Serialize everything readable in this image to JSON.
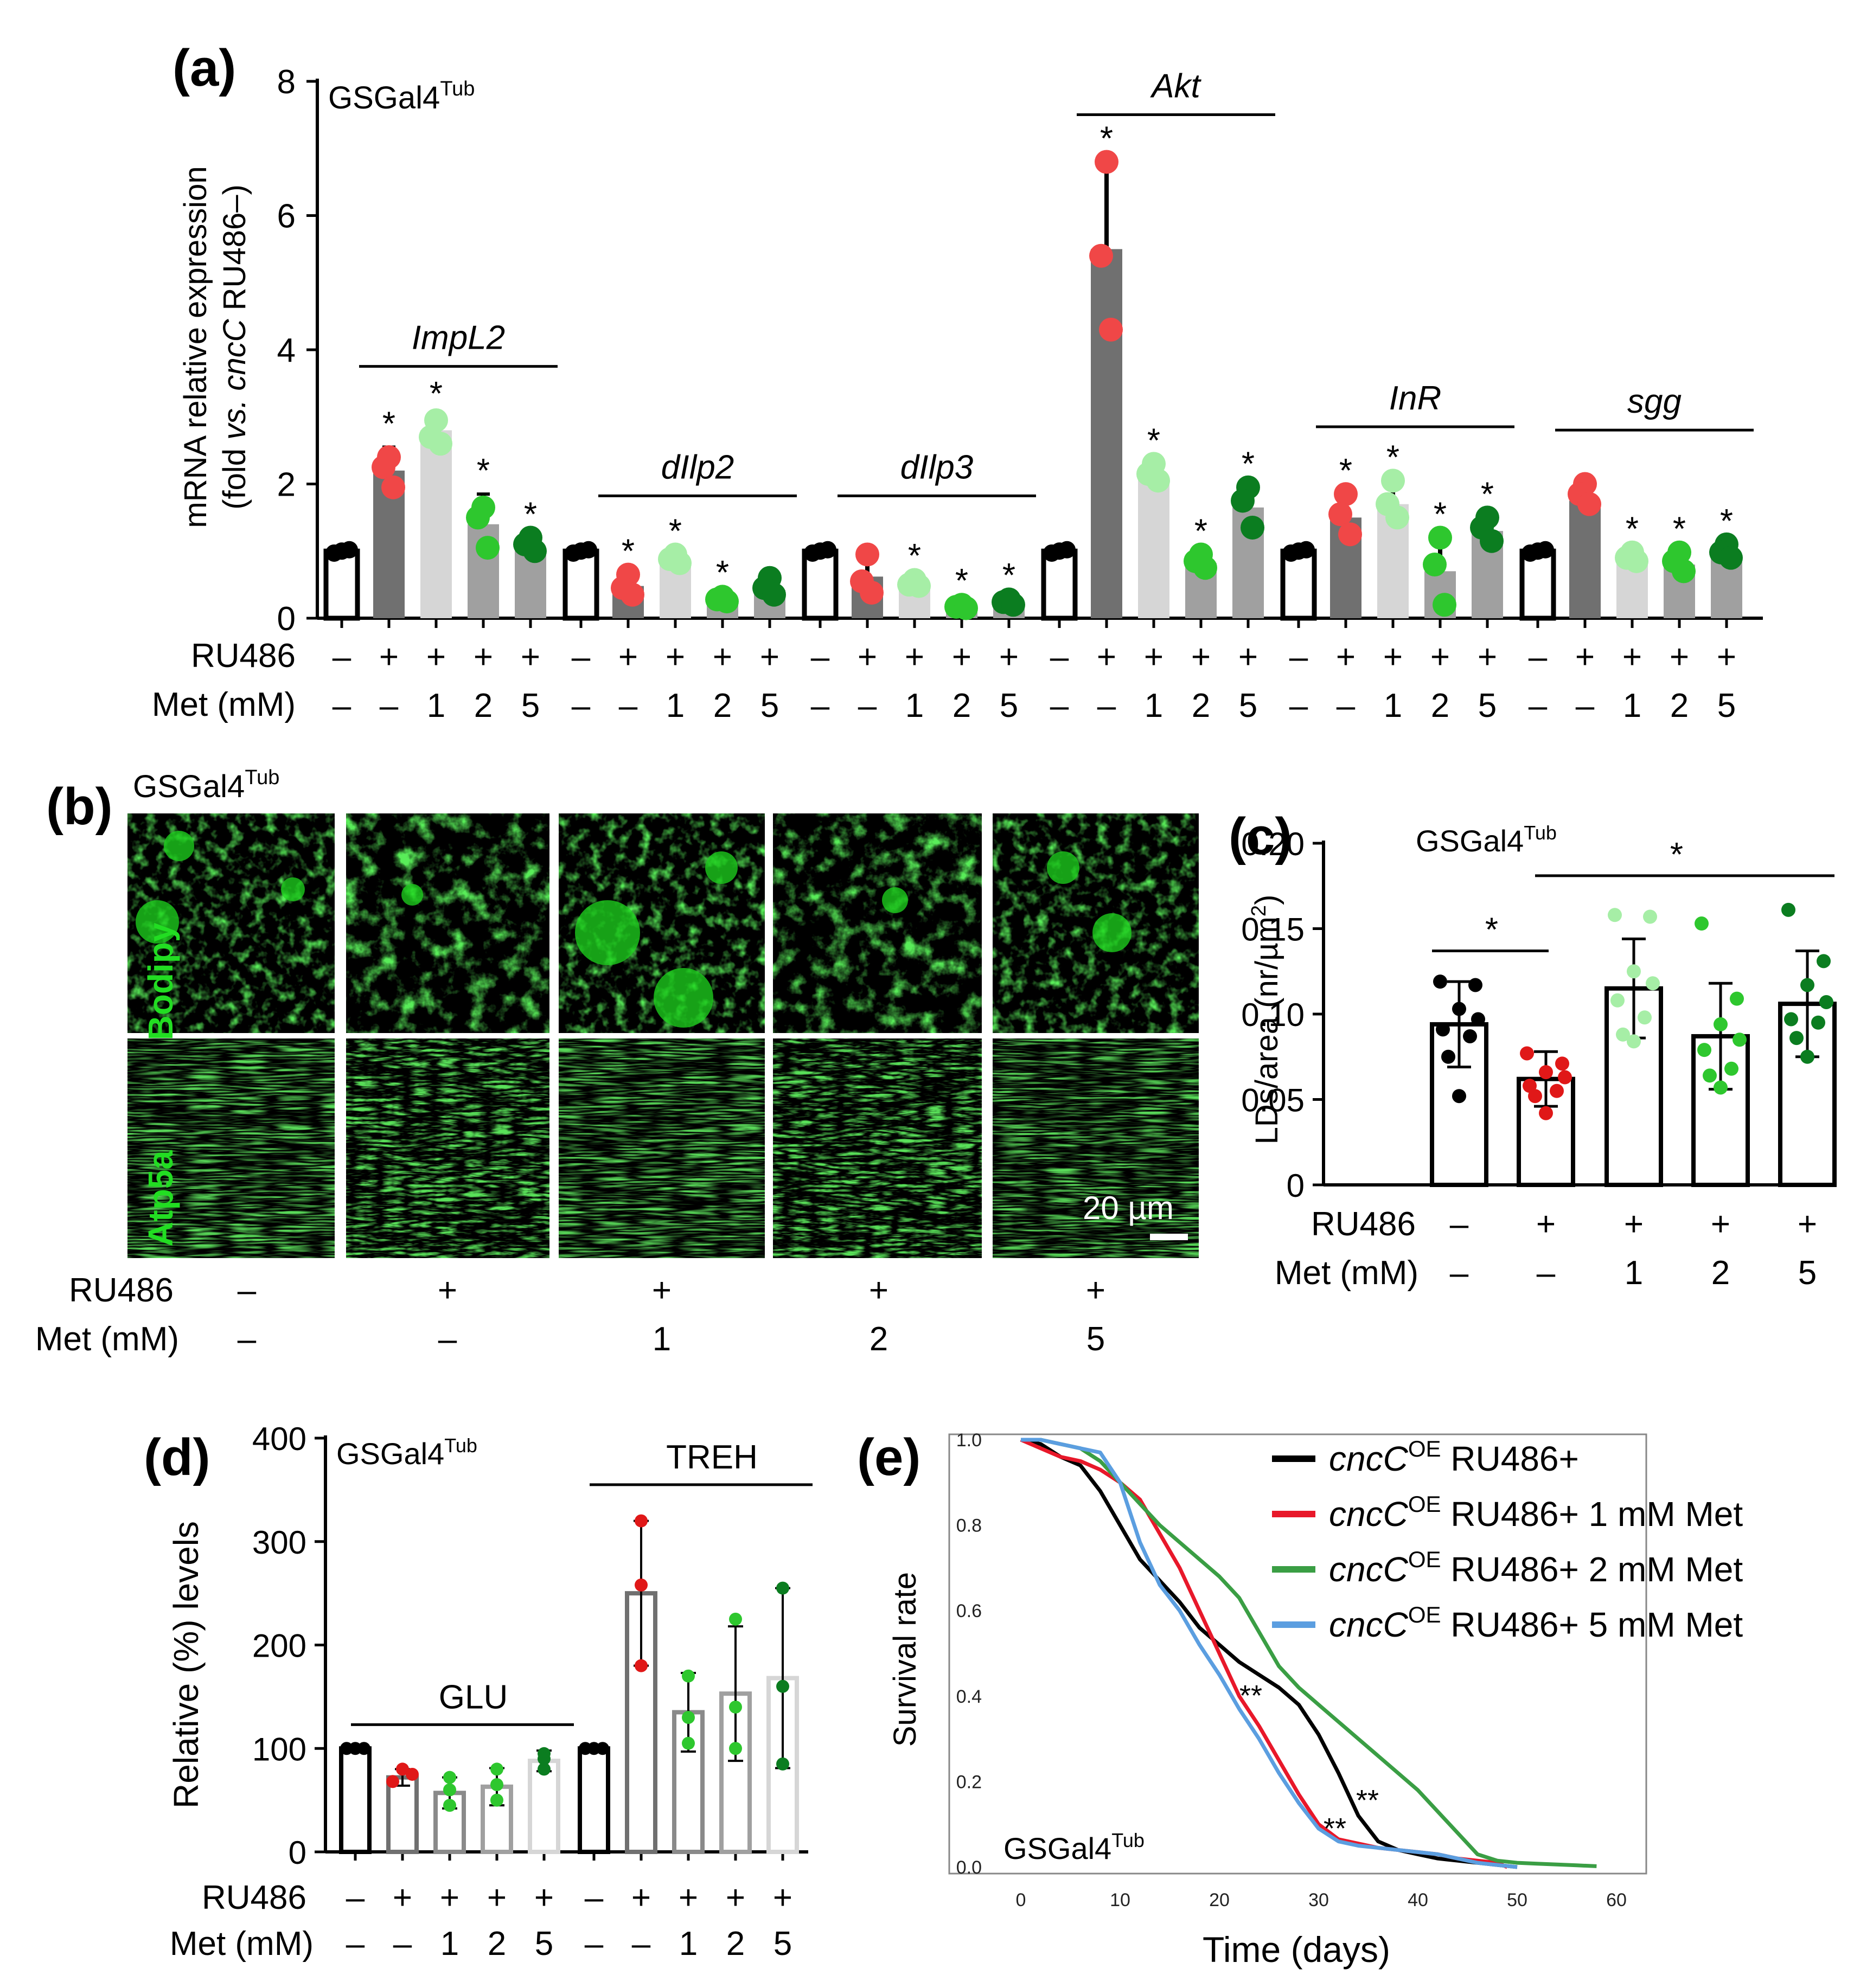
{
  "colors": {
    "black": "#000000",
    "red": "#e8403f",
    "red_dot": "#f04747",
    "lightgreen": "#a6eea6",
    "green": "#2ec72e",
    "darkgreen": "#0b7d20",
    "bar_dark": "#707070",
    "bar_mid": "#a0a0a0",
    "bar_light": "#d6d6d6",
    "line_black": "#000000",
    "line_red": "#e8182a",
    "line_green": "#3a9e44",
    "line_blue": "#5b9ee0",
    "img_green": "#1fd71f"
  },
  "panel_a": {
    "letter": "(a)",
    "strain": "GSGal4",
    "strain_sup": "Tub",
    "ylabel_line1": "mRNA relative expression",
    "ylabel_line2_pre": "(fold ",
    "ylabel_line2_vs": "vs.",
    "ylabel_line2_gene": "cncC",
    "ylabel_line2_post": " RU486–)",
    "row_labels": [
      "RU486",
      "Met (mM)"
    ],
    "chart_data": {
      "type": "bar",
      "ylim": [
        0,
        8
      ],
      "yticks": [
        "0",
        "2",
        "4",
        "6",
        "8"
      ],
      "ytick_values": [
        0,
        2,
        4,
        6,
        8
      ],
      "conditions": [
        {
          "ru486": "–",
          "met": "–"
        },
        {
          "ru486": "+",
          "met": "–"
        },
        {
          "ru486": "+",
          "met": "1"
        },
        {
          "ru486": "+",
          "met": "2"
        },
        {
          "ru486": "+",
          "met": "5"
        }
      ],
      "groups": [
        {
          "gene": "ImpL2",
          "means": [
            1.0,
            2.2,
            2.8,
            1.4,
            1.05
          ],
          "err": [
            0.04,
            0.35,
            0.2,
            0.45,
            0.12
          ],
          "points": [
            [
              0.97,
              1.0,
              1.02
            ],
            [
              2.4,
              2.25,
              1.95
            ],
            [
              2.95,
              2.7,
              2.6
            ],
            [
              1.65,
              1.5,
              1.05
            ],
            [
              1.2,
              1.1,
              1.0
            ]
          ],
          "sig": [
            "",
            "*",
            "*",
            "*",
            "*"
          ]
        },
        {
          "gene": "dIlp2",
          "means": [
            1.0,
            0.48,
            0.88,
            0.28,
            0.42
          ],
          "err": [
            0.04,
            0.15,
            0.06,
            0.05,
            0.12
          ],
          "points": [
            [
              0.97,
              1.0,
              1.02
            ],
            [
              0.65,
              0.45,
              0.35
            ],
            [
              0.95,
              0.88,
              0.82
            ],
            [
              0.32,
              0.28,
              0.25
            ],
            [
              0.6,
              0.45,
              0.35
            ]
          ],
          "sig": [
            "",
            "*",
            "*",
            "*",
            ""
          ]
        },
        {
          "gene": "dIlp3",
          "means": [
            1.0,
            0.62,
            0.52,
            0.18,
            0.24
          ],
          "err": [
            0.04,
            0.3,
            0.06,
            0.03,
            0.05
          ],
          "points": [
            [
              0.97,
              1.0,
              1.02
            ],
            [
              0.95,
              0.55,
              0.38
            ],
            [
              0.57,
              0.5,
              0.48
            ],
            [
              0.2,
              0.17,
              0.15
            ],
            [
              0.28,
              0.24,
              0.2
            ]
          ],
          "sig": [
            "",
            "",
            "*",
            "*",
            "*"
          ]
        },
        {
          "gene": "Akt",
          "means": [
            1.0,
            5.5,
            2.1,
            0.82,
            1.65
          ],
          "err": [
            0.04,
            1.3,
            0.12,
            0.1,
            0.3
          ],
          "points": [
            [
              0.97,
              1.0,
              1.02
            ],
            [
              6.8,
              5.4,
              4.3
            ],
            [
              2.3,
              2.15,
              2.05
            ],
            [
              0.95,
              0.85,
              0.75
            ],
            [
              1.95,
              1.75,
              1.35
            ]
          ],
          "sig": [
            "",
            "*",
            "*",
            "*",
            "*"
          ]
        },
        {
          "gene": "InR",
          "means": [
            1.0,
            1.5,
            1.7,
            0.7,
            1.3
          ],
          "err": [
            0.04,
            0.3,
            0.3,
            0.45,
            0.2
          ],
          "points": [
            [
              0.97,
              1.0,
              1.02
            ],
            [
              1.85,
              1.55,
              1.25
            ],
            [
              2.05,
              1.7,
              1.5
            ],
            [
              1.2,
              0.8,
              0.2
            ],
            [
              1.5,
              1.35,
              1.15
            ]
          ],
          "sig": [
            "",
            "*",
            "*",
            "*",
            "*"
          ]
        },
        {
          "gene": "sgg",
          "means": [
            1.0,
            1.75,
            0.9,
            0.8,
            0.95
          ],
          "err": [
            0.04,
            0.2,
            0.06,
            0.15,
            0.1
          ],
          "points": [
            [
              0.97,
              1.0,
              1.02
            ],
            [
              2.0,
              1.85,
              1.7
            ],
            [
              0.98,
              0.9,
              0.85
            ],
            [
              0.98,
              0.85,
              0.7
            ],
            [
              1.1,
              0.98,
              0.9
            ]
          ],
          "sig": [
            "",
            "",
            "*",
            "*",
            "*"
          ]
        }
      ]
    }
  },
  "panel_b": {
    "letter": "(b)",
    "strain": "GSGal4",
    "strain_sup": "Tub",
    "row_names": [
      "Bodipy",
      "Atp5a"
    ],
    "scale_bar": "20 µm",
    "row_labels": [
      "RU486",
      "Met (mM)"
    ],
    "conditions": [
      {
        "ru486": "–",
        "met": "–"
      },
      {
        "ru486": "+",
        "met": "–"
      },
      {
        "ru486": "+",
        "met": "1"
      },
      {
        "ru486": "+",
        "met": "2"
      },
      {
        "ru486": "+",
        "met": "5"
      }
    ]
  },
  "panel_c": {
    "letter": "(c)",
    "strain": "GSGal4",
    "strain_sup": "Tub",
    "ylabel_pre": "LDs/area (nr/µm",
    "ylabel_sup": "2",
    "ylabel_post": ")",
    "row_labels": [
      "RU486",
      "Met (mM)"
    ],
    "chart_data": {
      "type": "bar",
      "ylim": [
        0,
        0.2
      ],
      "yticks": [
        "0",
        "0.05",
        "0.10",
        "0.15",
        "0.20"
      ],
      "ytick_values": [
        0,
        0.05,
        0.1,
        0.15,
        0.2
      ],
      "conditions": [
        {
          "ru486": "–",
          "met": "–"
        },
        {
          "ru486": "+",
          "met": "–"
        },
        {
          "ru486": "+",
          "met": "1"
        },
        {
          "ru486": "+",
          "met": "2"
        },
        {
          "ru486": "+",
          "met": "5"
        }
      ],
      "means": [
        0.094,
        0.062,
        0.115,
        0.087,
        0.106
      ],
      "err": [
        0.025,
        0.016,
        0.029,
        0.031,
        0.031
      ],
      "points": [
        [
          0.119,
          0.117,
          0.103,
          0.097,
          0.091,
          0.087,
          0.075,
          0.052
        ],
        [
          0.077,
          0.071,
          0.066,
          0.063,
          0.058,
          0.055,
          0.052,
          0.042
        ],
        [
          0.158,
          0.157,
          0.125,
          0.118,
          0.108,
          0.098,
          0.088,
          0.084
        ],
        [
          0.153,
          0.109,
          0.094,
          0.085,
          0.079,
          0.068,
          0.064,
          0.057
        ],
        [
          0.161,
          0.131,
          0.117,
          0.107,
          0.097,
          0.095,
          0.086,
          0.075
        ]
      ],
      "sig": [
        {
          "from": 0,
          "to": 1,
          "label": "*"
        },
        {
          "from": 1,
          "to": 4,
          "label": "*"
        }
      ]
    }
  },
  "panel_d": {
    "letter": "(d)",
    "strain": "GSGal4",
    "strain_sup": "Tub",
    "ylabel": "Relative (%) levels",
    "row_labels": [
      "RU486",
      "Met (mM)"
    ],
    "chart_data": {
      "type": "bar",
      "ylim": [
        0,
        400
      ],
      "yticks": [
        "0",
        "100",
        "200",
        "300",
        "400"
      ],
      "ytick_values": [
        0,
        100,
        200,
        300,
        400
      ],
      "conditions": [
        {
          "ru486": "–",
          "met": "–"
        },
        {
          "ru486": "+",
          "met": "–"
        },
        {
          "ru486": "+",
          "met": "1"
        },
        {
          "ru486": "+",
          "met": "2"
        },
        {
          "ru486": "+",
          "met": "5"
        }
      ],
      "groups": [
        {
          "name": "GLU",
          "means": [
            100,
            72,
            57,
            63,
            88
          ],
          "err": [
            1,
            8,
            15,
            18,
            10
          ],
          "points": [
            [
              100,
              100,
              100
            ],
            [
              80,
              75,
              68
            ],
            [
              72,
              60,
              45
            ],
            [
              80,
              65,
              50
            ],
            [
              95,
              90,
              80
            ]
          ]
        },
        {
          "name": "TREH",
          "means": [
            100,
            250,
            135,
            153,
            168
          ],
          "err": [
            1,
            70,
            38,
            65,
            87
          ],
          "points": [
            [
              100,
              100,
              100
            ],
            [
              320,
              258,
              180
            ],
            [
              170,
              130,
              105
            ],
            [
              225,
              140,
              100
            ],
            [
              255,
              160,
              85
            ]
          ]
        }
      ]
    }
  },
  "panel_e": {
    "letter": "(e)",
    "strain": "GSGal4",
    "strain_sup": "Tub",
    "xlabel": "Time (days)",
    "ylabel": "Survival rate",
    "chart_data": {
      "type": "line",
      "xlim": [
        -5,
        63
      ],
      "ylim": [
        -0.02,
        1.02
      ],
      "xticks": [
        "0",
        "10",
        "20",
        "30",
        "40",
        "50",
        "60"
      ],
      "xtick_values": [
        0,
        10,
        20,
        30,
        40,
        50,
        60
      ],
      "yticks": [
        "0.0",
        "0.2",
        "0.4",
        "0.6",
        "0.8",
        "1.0"
      ],
      "ytick_values": [
        0,
        0.2,
        0.4,
        0.6,
        0.8,
        1.0
      ],
      "legend_position": "top-right",
      "annotations": [
        "**",
        "**",
        "**"
      ],
      "series": [
        {
          "legend_gene": "cncC",
          "legend_sup": "OE",
          "legend_rest": " RU486+",
          "color": "#000000",
          "x": [
            0,
            2,
            4,
            6,
            8,
            10,
            12,
            14,
            16,
            18,
            20,
            22,
            24,
            26,
            28,
            30,
            32,
            34,
            36,
            38,
            40,
            42,
            44,
            46,
            48,
            50
          ],
          "y": [
            1.0,
            0.99,
            0.96,
            0.94,
            0.88,
            0.8,
            0.72,
            0.67,
            0.62,
            0.56,
            0.52,
            0.48,
            0.45,
            0.42,
            0.38,
            0.31,
            0.22,
            0.12,
            0.06,
            0.04,
            0.03,
            0.02,
            0.015,
            0.01,
            0.005,
            0.0
          ]
        },
        {
          "legend_gene": "cncC",
          "legend_sup": "OE",
          "legend_rest": " RU486+ 1 mM Met",
          "color": "#e8182a",
          "x": [
            0,
            2,
            4,
            6,
            8,
            10,
            12,
            14,
            16,
            18,
            20,
            22,
            24,
            26,
            28,
            30,
            32,
            34,
            36,
            38,
            40,
            42,
            44,
            46,
            48,
            49
          ],
          "y": [
            1.0,
            0.98,
            0.96,
            0.95,
            0.93,
            0.9,
            0.86,
            0.78,
            0.7,
            0.6,
            0.5,
            0.4,
            0.33,
            0.25,
            0.17,
            0.1,
            0.065,
            0.055,
            0.045,
            0.04,
            0.035,
            0.03,
            0.02,
            0.015,
            0.01,
            0.0
          ]
        },
        {
          "legend_gene": "cncC",
          "legend_sup": "OE",
          "legend_rest": " RU486+ 2 mM Met",
          "color": "#3a9e44",
          "x": [
            0,
            2,
            4,
            6,
            8,
            10,
            12,
            14,
            16,
            18,
            20,
            22,
            24,
            26,
            28,
            30,
            32,
            34,
            36,
            38,
            40,
            42,
            44,
            46,
            48,
            50,
            52,
            54,
            56,
            58
          ],
          "y": [
            1.0,
            1.0,
            0.99,
            0.98,
            0.95,
            0.9,
            0.85,
            0.8,
            0.76,
            0.72,
            0.68,
            0.63,
            0.55,
            0.47,
            0.42,
            0.38,
            0.34,
            0.3,
            0.26,
            0.22,
            0.18,
            0.13,
            0.08,
            0.03,
            0.015,
            0.01,
            0.008,
            0.006,
            0.004,
            0.002
          ]
        },
        {
          "legend_gene": "cncC",
          "legend_sup": "OE",
          "legend_rest": " RU486+ 5 mM Met",
          "color": "#5b9ee0",
          "x": [
            0,
            2,
            4,
            6,
            8,
            10,
            12,
            14,
            16,
            18,
            20,
            22,
            24,
            26,
            28,
            30,
            32,
            34,
            36,
            38,
            40,
            42,
            44,
            46,
            48,
            50
          ],
          "y": [
            1.0,
            1.0,
            0.99,
            0.98,
            0.97,
            0.9,
            0.76,
            0.66,
            0.6,
            0.52,
            0.45,
            0.37,
            0.3,
            0.22,
            0.15,
            0.09,
            0.06,
            0.05,
            0.045,
            0.04,
            0.035,
            0.03,
            0.02,
            0.01,
            0.005,
            0.0
          ]
        }
      ]
    }
  }
}
